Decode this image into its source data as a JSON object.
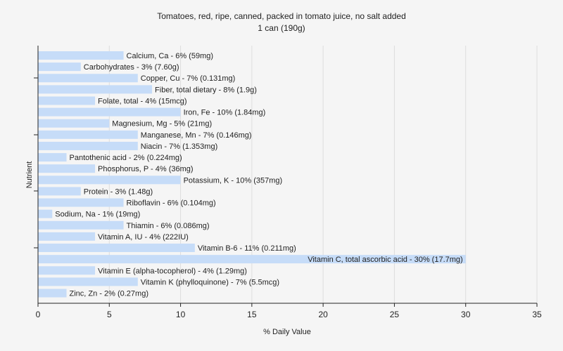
{
  "chart_data": {
    "type": "bar",
    "orientation": "horizontal",
    "title": "Tomatoes, red, ripe, canned, packed in tomato juice, no salt added",
    "subtitle": "1 can (190g)",
    "xlabel": "% Daily Value",
    "ylabel": "Nutrient",
    "xlim": [
      0,
      35
    ],
    "xticks": [
      0,
      5,
      10,
      15,
      20,
      25,
      30,
      35
    ],
    "grid": true,
    "bar_color": "#c6dcf8",
    "categories": [
      "Calcium, Ca - 6% (59mg)",
      "Carbohydrates - 3% (7.60g)",
      "Copper, Cu - 7% (0.131mg)",
      "Fiber, total dietary - 8% (1.9g)",
      "Folate, total - 4% (15mcg)",
      "Iron, Fe - 10% (1.84mg)",
      "Magnesium, Mg - 5% (21mg)",
      "Manganese, Mn - 7% (0.146mg)",
      "Niacin - 7% (1.353mg)",
      "Pantothenic acid - 2% (0.224mg)",
      "Phosphorus, P - 4% (36mg)",
      "Potassium, K - 10% (357mg)",
      "Protein - 3% (1.48g)",
      "Riboflavin - 6% (0.104mg)",
      "Sodium, Na - 1% (19mg)",
      "Thiamin - 6% (0.086mg)",
      "Vitamin A, IU - 4% (222IU)",
      "Vitamin B-6 - 11% (0.211mg)",
      "Vitamin C, total ascorbic acid - 30% (17.7mg)",
      "Vitamin E (alpha-tocopherol) - 4% (1.29mg)",
      "Vitamin K (phylloquinone) - 7% (5.5mcg)",
      "Zinc, Zn - 2% (0.27mg)"
    ],
    "values": [
      6,
      3,
      7,
      8,
      4,
      10,
      5,
      7,
      7,
      2,
      4,
      10,
      3,
      6,
      1,
      6,
      4,
      11,
      30,
      4,
      7,
      2
    ]
  }
}
